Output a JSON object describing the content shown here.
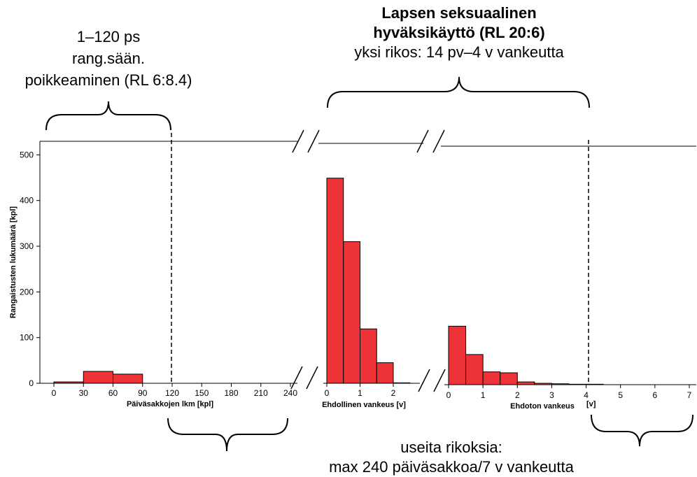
{
  "annotations": {
    "left_line1": "1–120 ps",
    "left_line2": "rang.sään.",
    "left_line3": "poikkeaminen (RL 6:8.4)",
    "top_line1": "Lapsen seksuaalinen",
    "top_line2": "hyväksikäyttö (RL 20:6)",
    "top_line3": "yksi rikos: 14 pv–4 v vankeutta",
    "bottom_line1": "useita rikoksia:",
    "bottom_line2": "max 240 päiväsakkoa/7 v vankeutta"
  },
  "colors": {
    "bar": "#ee3338",
    "bar_edge": "#000000"
  },
  "chart_data": {
    "type": "bar",
    "ylabel": "Rangaistusten lukumäärä [kpl]",
    "ylim": [
      0,
      525
    ],
    "yticks": [
      "0",
      "100",
      "200",
      "300",
      "400",
      "500"
    ],
    "panels": [
      {
        "name": "fines",
        "xlabel": "Päiväsakkojen lkm [kpl]",
        "xticks": [
          "0",
          "30",
          "60",
          "90",
          "120",
          "150",
          "180",
          "210",
          "240"
        ],
        "xlim": [
          -10,
          250
        ],
        "bin_width": 30,
        "bins": [
          0,
          30,
          60
        ],
        "values": [
          3,
          26,
          20
        ],
        "threshold": 120
      },
      {
        "name": "conditional",
        "xlabel": "Ehdollinen vankeus [v]",
        "xticks": [
          "0",
          "1",
          "2"
        ],
        "xlim": [
          -0.1,
          2.6
        ],
        "bin_width": 0.5,
        "bins": [
          0,
          0.5,
          1.0,
          1.5,
          2.0
        ],
        "values": [
          449,
          310,
          119,
          45,
          1
        ]
      },
      {
        "name": "unconditional",
        "xlabel": "Ehdoton vankeus",
        "xlabel_unit": "[v]",
        "xticks": [
          "0",
          "1",
          "2",
          "3",
          "4",
          "5",
          "6",
          "7"
        ],
        "xlim": [
          -0.1,
          7.2
        ],
        "bin_width": 0.5,
        "bins": [
          0,
          0.5,
          1.0,
          1.5,
          2.0,
          2.5,
          3.0,
          3.5,
          4.0,
          4.5,
          5.0,
          5.5,
          6.0,
          6.5
        ],
        "values": [
          128,
          66,
          28,
          26,
          6,
          3,
          2,
          1,
          1,
          0,
          0,
          0,
          0,
          0
        ],
        "threshold": 4
      }
    ]
  }
}
